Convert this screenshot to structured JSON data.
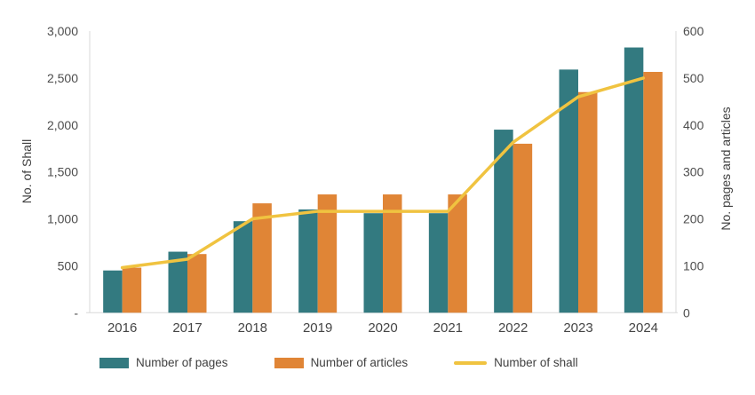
{
  "chart_data": {
    "type": "combo-bar-line",
    "title": "",
    "categories": [
      "2016",
      "2017",
      "2018",
      "2019",
      "2020",
      "2021",
      "2022",
      "2023",
      "2024"
    ],
    "series": [
      {
        "name": "Number of pages",
        "type": "bar",
        "axis": "right",
        "color": "#337a80",
        "values": [
          90,
          130,
          195,
          220,
          212,
          212,
          390,
          518,
          565
        ]
      },
      {
        "name": "Number of articles",
        "type": "bar",
        "axis": "right",
        "color": "#e08536",
        "values": [
          96,
          125,
          233,
          252,
          252,
          252,
          360,
          470,
          513
        ]
      },
      {
        "name": "Number of shall",
        "type": "line",
        "axis": "left",
        "color": "#f0c340",
        "values": [
          480,
          570,
          1000,
          1080,
          1080,
          1080,
          1815,
          2300,
          2500
        ]
      }
    ],
    "left_axis": {
      "label": "No. of Shall",
      "min": 0,
      "max": 3000,
      "step": 500,
      "tick_labels": [
        "-",
        "500",
        "1,000",
        "1,500",
        "2,000",
        "2,500",
        "3,000"
      ]
    },
    "right_axis": {
      "label": "No. pages and articles",
      "min": 0,
      "max": 600,
      "step": 100,
      "tick_labels": [
        "0",
        "100",
        "200",
        "300",
        "400",
        "500",
        "600"
      ]
    },
    "legend_position": "bottom",
    "grid": "off",
    "axis_line_color": "#d9d9d9"
  }
}
